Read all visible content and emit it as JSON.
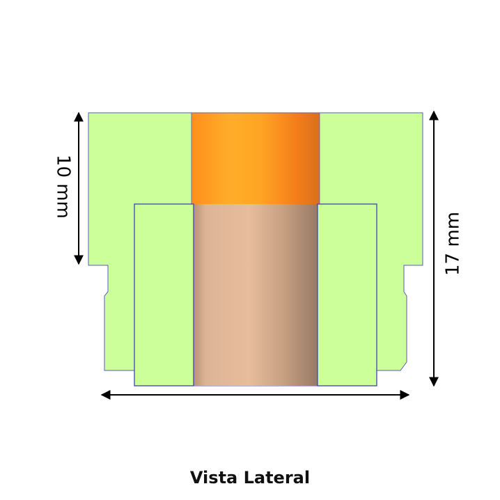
{
  "diagram": {
    "dimension_left": "10 mm",
    "dimension_right": "17 mm",
    "caption": "Vista Lateral"
  },
  "colors": {
    "housing_fill": "#ccff99",
    "outline": "#5555cc",
    "core_top_orange": "#ff9a1e",
    "core_bottom_tan": "#e0b597",
    "arrow": "#000000"
  }
}
